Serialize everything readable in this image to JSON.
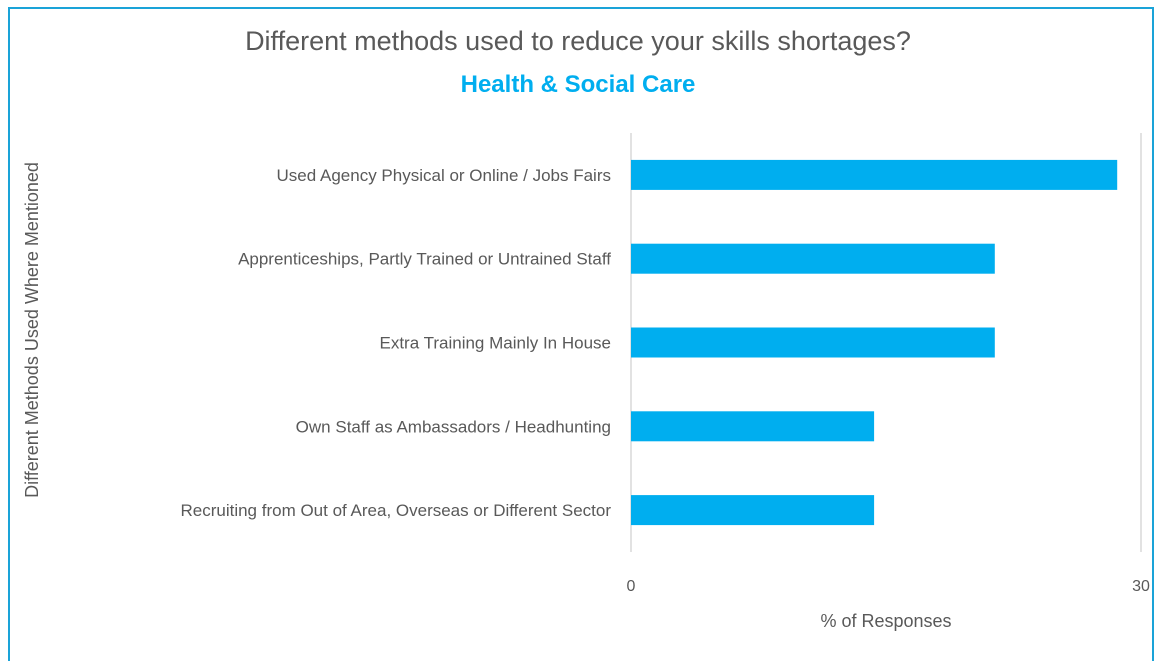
{
  "chart_data": {
    "type": "bar",
    "orientation": "horizontal",
    "title": "Different methods used to reduce your skills shortages?",
    "subtitle": "Health & Social Care",
    "xlabel": "% of Responses",
    "ylabel": "Different Methods Used Where Mentioned",
    "xlim": [
      0,
      30
    ],
    "xticks": [
      "0",
      "30"
    ],
    "categories": [
      "Used Agency Physical or Online / Jobs Fairs",
      "Apprenticeships, Partly Trained or Untrained Staff",
      "Extra Training Mainly In House",
      "Own Staff as Ambassadors / Headhunting",
      "Recruiting from Out of Area, Overseas or Different Sector"
    ],
    "values": [
      28.6,
      21.4,
      21.4,
      14.3,
      14.3
    ],
    "grid": true,
    "legend": "none",
    "colors": {
      "bar": "#00aeef",
      "gridline": "#d9d9d9",
      "text": "#595959",
      "frame": "#1aa3d8"
    }
  }
}
